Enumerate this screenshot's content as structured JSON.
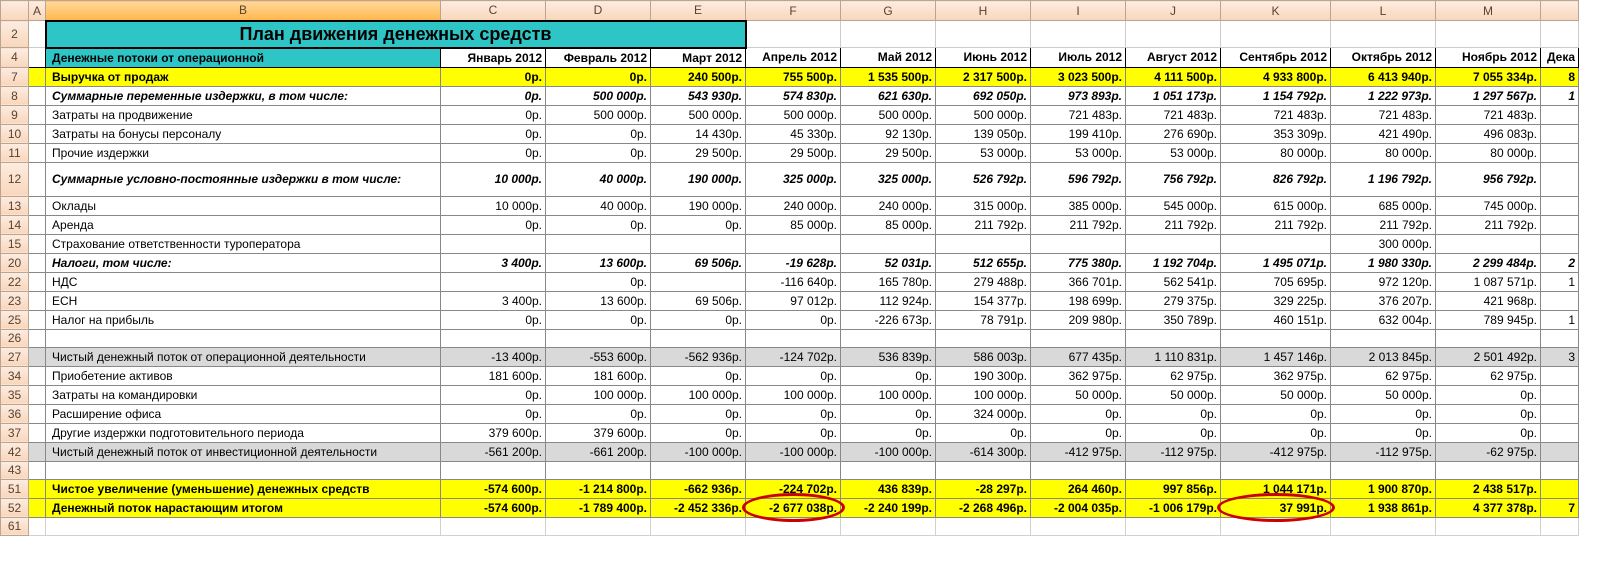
{
  "colLetters": [
    "A",
    "B",
    "C",
    "D",
    "E",
    "F",
    "G",
    "H",
    "I",
    "J",
    "K",
    "L",
    "M",
    ""
  ],
  "activeCol": "B",
  "colWidths": {
    "rowhead": 28,
    "A": 12,
    "B": 395,
    "C": 105,
    "D": 105,
    "E": 95,
    "F": 95,
    "G": 95,
    "H": 95,
    "I": 95,
    "J": 95,
    "K": 110,
    "L": 105,
    "M": 105,
    "N": 38
  },
  "title": "План движения денежных средств",
  "monthsHeader": {
    "label": "Денежные потоки от операционной",
    "cols": [
      "Январь 2012",
      "Февраль 2012",
      "Март 2012",
      "Апрель 2012",
      "Май 2012",
      "Июнь 2012",
      "Июль 2012",
      "Август 2012",
      "Сентябрь 2012",
      "Октябрь 2012",
      "Ноябрь 2012",
      "Дека"
    ]
  },
  "rows": [
    {
      "n": "7",
      "style": "yellow bold",
      "label": "Выручка от продаж",
      "vals": [
        "0р.",
        "0р.",
        "240 500р.",
        "755 500р.",
        "1 535 500р.",
        "2 317 500р.",
        "3 023 500р.",
        "4 111 500р.",
        "4 933 800р.",
        "6 413 940р.",
        "7 055 334р.",
        "8"
      ]
    },
    {
      "n": "8",
      "style": "bold italic",
      "label": "Суммарные переменные издержки, в том числе:",
      "vals": [
        "0р.",
        "500 000р.",
        "543 930р.",
        "574 830р.",
        "621 630р.",
        "692 050р.",
        "973 893р.",
        "1 051 173р.",
        "1 154 792р.",
        "1 222 973р.",
        "1 297 567р.",
        "1 "
      ]
    },
    {
      "n": "9",
      "style": "",
      "label": "  Затраты на продвижение",
      "vals": [
        "0р.",
        "500 000р.",
        "500 000р.",
        "500 000р.",
        "500 000р.",
        "500 000р.",
        "721 483р.",
        "721 483р.",
        "721 483р.",
        "721 483р.",
        "721 483р.",
        ""
      ]
    },
    {
      "n": "10",
      "style": "",
      "label": "  Затраты на бонусы персоналу",
      "vals": [
        "0р.",
        "0р.",
        "14 430р.",
        "45 330р.",
        "92 130р.",
        "139 050р.",
        "199 410р.",
        "276 690р.",
        "353 309р.",
        "421 490р.",
        "496 083р.",
        ""
      ]
    },
    {
      "n": "11",
      "style": "",
      "label": "  Прочие издержки",
      "vals": [
        "0р.",
        "0р.",
        "29 500р.",
        "29 500р.",
        "29 500р.",
        "53 000р.",
        "53 000р.",
        "53 000р.",
        "80 000р.",
        "80 000р.",
        "80 000р.",
        ""
      ]
    },
    {
      "n": "12",
      "style": "bold italic",
      "label": "Суммарные условно-постоянные издержки в том числе:",
      "vals": [
        "10 000р.",
        "40 000р.",
        "190 000р.",
        "325 000р.",
        "325 000р.",
        "526 792р.",
        "596 792р.",
        "756 792р.",
        "826 792р.",
        "1 196 792р.",
        "956 792р.",
        ""
      ],
      "tall": true
    },
    {
      "n": "13",
      "style": "",
      "label": "  Оклады",
      "vals": [
        "10 000р.",
        "40 000р.",
        "190 000р.",
        "240 000р.",
        "240 000р.",
        "315 000р.",
        "385 000р.",
        "545 000р.",
        "615 000р.",
        "685 000р.",
        "745 000р.",
        ""
      ]
    },
    {
      "n": "14",
      "style": "",
      "label": "  Аренда",
      "vals": [
        "0р.",
        "0р.",
        "0р.",
        "85 000р.",
        "85 000р.",
        "211 792р.",
        "211 792р.",
        "211 792р.",
        "211 792р.",
        "211 792р.",
        "211 792р.",
        ""
      ]
    },
    {
      "n": "15",
      "style": "",
      "label": "  Страхование ответственности туроператора",
      "vals": [
        "",
        "",
        "",
        "",
        "",
        "",
        "",
        "",
        "",
        "300 000р.",
        "",
        ""
      ]
    },
    {
      "n": "20",
      "style": "bold italic",
      "label": "Налоги, том числе:",
      "vals": [
        "3 400р.",
        "13 600р.",
        "69 506р.",
        "-19 628р.",
        "52 031р.",
        "512 655р.",
        "775 380р.",
        "1 192 704р.",
        "1 495 071р.",
        "1 980 330р.",
        "2 299 484р.",
        "2 "
      ]
    },
    {
      "n": "22",
      "style": "",
      "label": "  НДС",
      "vals": [
        "",
        "0р.",
        "",
        "-116 640р.",
        "165 780р.",
        "279 488р.",
        "366 701р.",
        "562 541р.",
        "705 695р.",
        "972 120р.",
        "1 087 571р.",
        "1"
      ]
    },
    {
      "n": "23",
      "style": "",
      "label": "  ЕСН",
      "vals": [
        "3 400р.",
        "13 600р.",
        "69 506р.",
        "97 012р.",
        "112 924р.",
        "154 377р.",
        "198 699р.",
        "279 375р.",
        "329 225р.",
        "376 207р.",
        "421 968р.",
        ""
      ]
    },
    {
      "n": "25",
      "style": "",
      "label": "  Налог на прибыль",
      "vals": [
        "0р.",
        "0р.",
        "0р.",
        "0р.",
        "-226 673р.",
        "78 791р.",
        "209 980р.",
        "350 789р.",
        "460 151р.",
        "632 004р.",
        "789 945р.",
        "1"
      ]
    },
    {
      "n": "26",
      "style": "empty",
      "label": "",
      "vals": [
        "",
        "",
        "",
        "",
        "",
        "",
        "",
        "",
        "",
        "",
        "",
        ""
      ]
    },
    {
      "n": "27",
      "style": "gray",
      "label": "Чистый денежный поток от операционной деятельности",
      "vals": [
        "-13 400р.",
        "-553 600р.",
        "-562 936р.",
        "-124 702р.",
        "536 839р.",
        "586 003р.",
        "677 435р.",
        "1 110 831р.",
        "1 457 146р.",
        "2 013 845р.",
        "2 501 492р.",
        "3"
      ]
    },
    {
      "n": "34",
      "style": "",
      "label": "  Приобетение активов",
      "vals": [
        "181 600р.",
        "181 600р.",
        "0р.",
        "0р.",
        "0р.",
        "190 300р.",
        "362 975р.",
        "62 975р.",
        "362 975р.",
        "62 975р.",
        "62 975р.",
        ""
      ]
    },
    {
      "n": "35",
      "style": "",
      "label": "  Затраты на командировки",
      "vals": [
        "0р.",
        "100 000р.",
        "100 000р.",
        "100 000р.",
        "100 000р.",
        "100 000р.",
        "50 000р.",
        "50 000р.",
        "50 000р.",
        "50 000р.",
        "0р.",
        ""
      ]
    },
    {
      "n": "36",
      "style": "",
      "label": "  Расширение офиса",
      "vals": [
        "0р.",
        "0р.",
        "0р.",
        "0р.",
        "0р.",
        "324 000р.",
        "0р.",
        "0р.",
        "0р.",
        "0р.",
        "0р.",
        ""
      ]
    },
    {
      "n": "37",
      "style": "",
      "label": "  Другие издержки подготовительного периода",
      "vals": [
        "379 600р.",
        "379 600р.",
        "0р.",
        "0р.",
        "0р.",
        "0р.",
        "0р.",
        "0р.",
        "0р.",
        "0р.",
        "0р.",
        ""
      ]
    },
    {
      "n": "42",
      "style": "gray",
      "label": "Чистый денежный поток от инвестиционной деятельности",
      "vals": [
        "-561 200р.",
        "-661 200р.",
        "-100 000р.",
        "-100 000р.",
        "-100 000р.",
        "-614 300р.",
        "-412 975р.",
        "-112 975р.",
        "-412 975р.",
        "-112 975р.",
        "-62 975р.",
        ""
      ]
    },
    {
      "n": "43",
      "style": "empty",
      "label": "",
      "vals": [
        "",
        "",
        "",
        "",
        "",
        "",
        "",
        "",
        "",
        "",
        "",
        ""
      ]
    },
    {
      "n": "51",
      "style": "yellow bold",
      "label": "Чистое увеличение (уменьшение) денежных средств",
      "vals": [
        "-574 600р.",
        "-1 214 800р.",
        "-662 936р.",
        "-224 702р.",
        "436 839р.",
        "-28 297р.",
        "264 460р.",
        "997 856р.",
        "1 044 171р.",
        "1 900 870р.",
        "2 438 517р.",
        ""
      ]
    },
    {
      "n": "52",
      "style": "yellow bold",
      "label": "Денежный поток нарастающим итогом",
      "vals": [
        "-574 600р.",
        "-1 789 400р.",
        "-2 452 336р.",
        "-2 677 038р.",
        "-2 240 199р.",
        "-2 268 496р.",
        "-2 004 035р.",
        "-1 006 179р.",
        "37 991р.",
        "1 938 861р.",
        "4 377 378р.",
        "7"
      ]
    },
    {
      "n": "61",
      "style": "blank",
      "label": "",
      "vals": [
        "",
        "",
        "",
        "",
        "",
        "",
        "",
        "",
        "",
        "",
        "",
        ""
      ]
    }
  ],
  "circles": [
    {
      "row": "52",
      "col": "F"
    },
    {
      "row": "52",
      "col": "K"
    }
  ]
}
